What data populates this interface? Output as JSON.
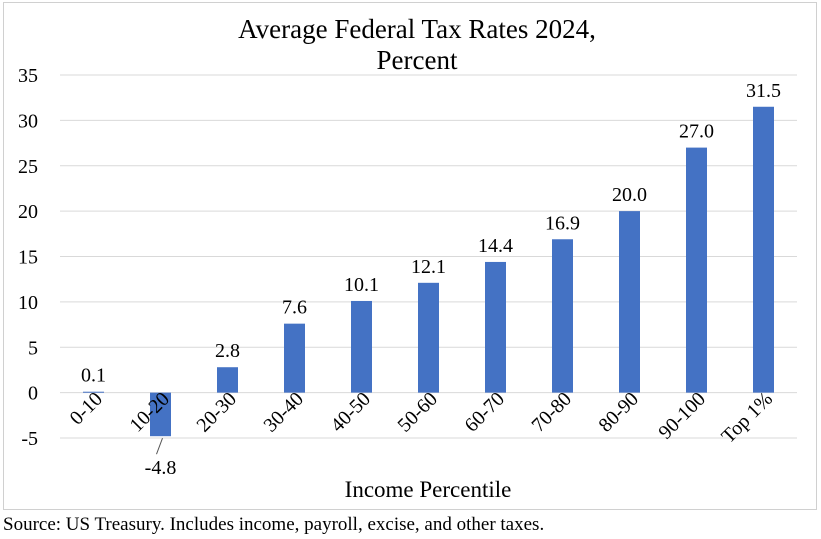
{
  "chart_data": {
    "type": "bar",
    "title": "Average Federal Tax Rates 2024,",
    "subtitle": "Percent",
    "xlabel": "Income Percentile",
    "ylabel": "",
    "categories": [
      "0-10",
      "10-20",
      "20-30",
      "30-40",
      "40-50",
      "50-60",
      "60-70",
      "70-80",
      "80-90",
      "90-100",
      "Top 1%"
    ],
    "values": [
      0.1,
      -4.8,
      2.8,
      7.6,
      10.1,
      12.1,
      14.4,
      16.9,
      20.0,
      27.0,
      31.5
    ],
    "data_labels": [
      "0.1",
      "-4.8",
      "2.8",
      "7.6",
      "10.1",
      "12.1",
      "14.4",
      "16.9",
      "20.0",
      "27.0",
      "31.5"
    ],
    "ylim": [
      -5,
      35
    ],
    "yticks": [
      35,
      30,
      25,
      20,
      15,
      10,
      5,
      0,
      -5
    ],
    "grid": true,
    "bar_color": "#4472c4",
    "grid_color": "#d9d9d9"
  },
  "source_note": "Source: US Treasury. Includes income, payroll, excise, and other taxes."
}
